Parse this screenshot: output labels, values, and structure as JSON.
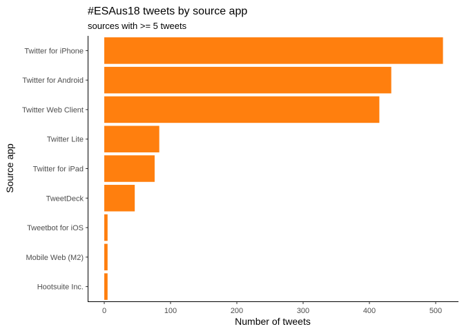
{
  "chart_data": {
    "type": "bar",
    "orientation": "horizontal",
    "title": "#ESAus18 tweets by source app",
    "subtitle": "sources with >= 5 tweets",
    "xlabel": "Number of tweets",
    "ylabel": "Source app",
    "categories": [
      "Twitter for iPhone",
      "Twitter for Android",
      "Twitter Web Client",
      "Twitter Lite",
      "Twitter for iPad",
      "TweetDeck",
      "Tweetbot for iOS",
      "Mobile Web (M2)",
      "Hootsuite Inc."
    ],
    "values": [
      511,
      433,
      415,
      83,
      76,
      46,
      5,
      5,
      5
    ],
    "xlim": [
      0,
      535
    ],
    "xticks": [
      0,
      100,
      200,
      300,
      400,
      500
    ],
    "grid": false,
    "bar_color": "#ff7f0e"
  }
}
